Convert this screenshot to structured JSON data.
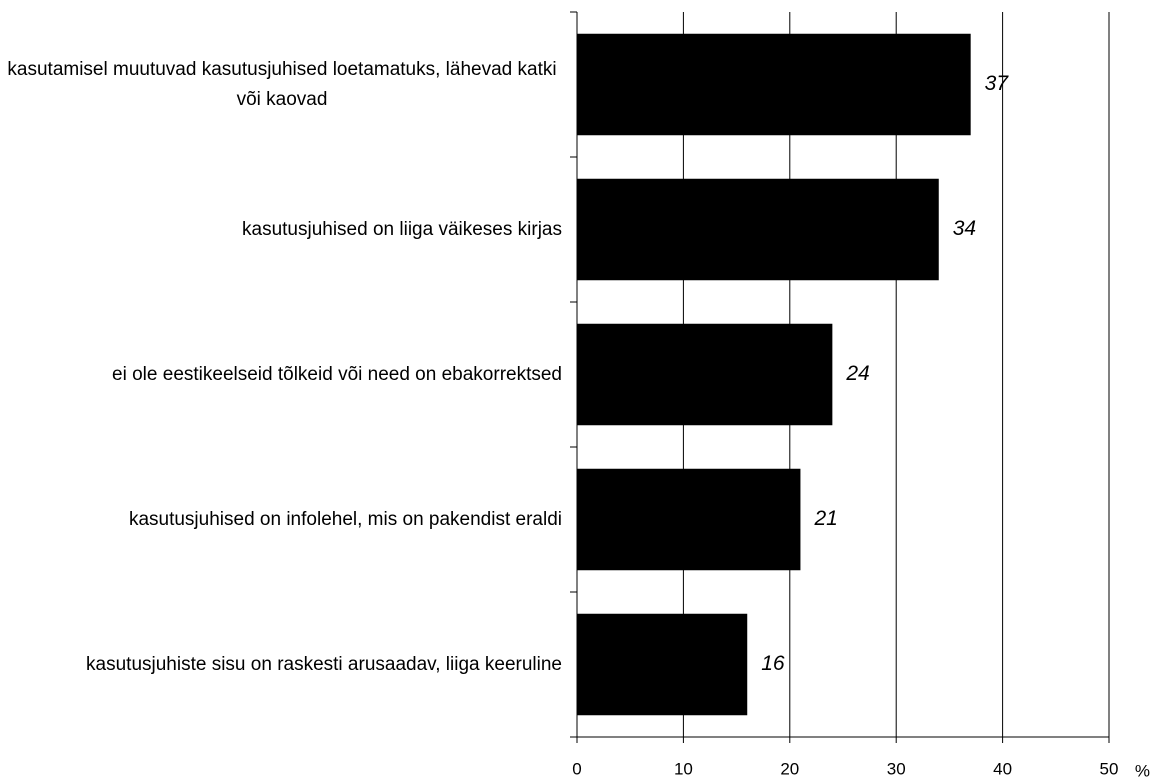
{
  "chart_data": {
    "type": "bar",
    "orientation": "horizontal",
    "categories": [
      "kasutamisel muutuvad kasutusjuhised loetamatuks, lähevad katki või kaovad",
      "kasutusjuhised on liiga väikeses kirjas",
      "ei ole eestikeelseid tõlkeid või need on ebakorrektsed",
      "kasutusjuhised on infolehel, mis on pakendist eraldi",
      "kasutusjuhiste sisu on raskesti arusaadav, liiga keeruline"
    ],
    "values": [
      37,
      34,
      24,
      21,
      16
    ],
    "color": "#000000",
    "xlim": [
      0,
      50
    ],
    "xticks": [
      0,
      10,
      20,
      30,
      40,
      50
    ],
    "xlabel": "%",
    "grid": true
  }
}
